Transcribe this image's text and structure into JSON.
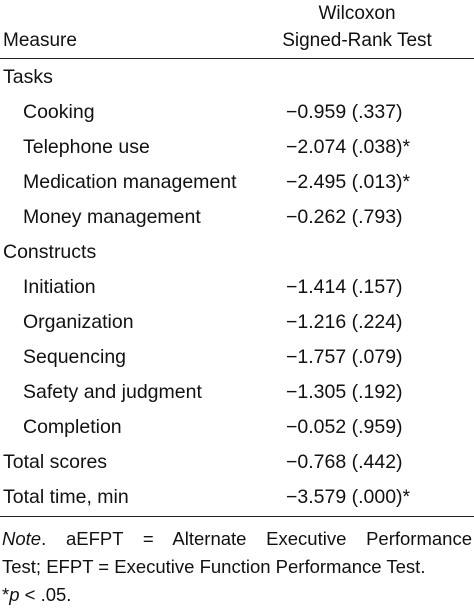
{
  "header": {
    "measure": "Measure",
    "stat_line1": "Wilcoxon",
    "stat_line2": "Signed-Rank Test"
  },
  "rows": [
    {
      "label": "Tasks",
      "value": ""
    },
    {
      "label": "Cooking",
      "value": "−0.959 (.337)"
    },
    {
      "label": "Telephone use",
      "value": "−2.074 (.038)*"
    },
    {
      "label": "Medication management",
      "value": "−2.495 (.013)*"
    },
    {
      "label": "Money management",
      "value": "−0.262 (.793)"
    },
    {
      "label": "Constructs",
      "value": ""
    },
    {
      "label": "Initiation",
      "value": "−1.414 (.157)"
    },
    {
      "label": "Organization",
      "value": "−1.216 (.224)"
    },
    {
      "label": "Sequencing",
      "value": "−1.757 (.079)"
    },
    {
      "label": "Safety and judgment",
      "value": "−1.305 (.192)"
    },
    {
      "label": "Completion",
      "value": "−0.052 (.959)"
    },
    {
      "label": "Total scores",
      "value": "−0.768 (.442)"
    },
    {
      "label": "Total time, min",
      "value": "−3.579 (.000)*"
    }
  ],
  "note": {
    "note_word": "Note",
    "line1_rest": ". aEFPT = Alternate Executive Performance",
    "line2": "Test; EFPT = Executive Function Performance Test.",
    "line3_star": "*",
    "line3_p": "p",
    "line3_rest": " < .05."
  }
}
